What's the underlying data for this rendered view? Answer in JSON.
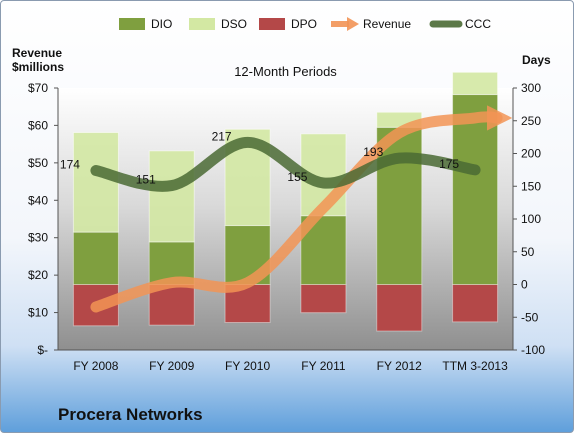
{
  "company": "Procera Networks",
  "chart_data": {
    "type": "bar",
    "title": "12-Month Periods",
    "y_left_label": [
      "Revenue",
      "$millions"
    ],
    "y_right_label": "Days",
    "categories": [
      "FY 2008",
      "FY 2009",
      "FY 2010",
      "FY 2011",
      "FY 2012",
      "TTM 3-2013"
    ],
    "y_left_ticks": [
      "$-",
      "$10",
      "$20",
      "$30",
      "$40",
      "$50",
      "$60",
      "$70"
    ],
    "y_left_range": [
      0,
      70
    ],
    "y_right_ticks": [
      "-100",
      "-50",
      "0",
      "50",
      "100",
      "150",
      "200",
      "250",
      "300"
    ],
    "y_right_range": [
      -100,
      300
    ],
    "legend_position": "top",
    "series": [
      {
        "name": "DIO",
        "kind": "stacked-bar",
        "axis": "right",
        "color": "#7f9f3f",
        "values": [
          80,
          65,
          90,
          105,
          240,
          290
        ]
      },
      {
        "name": "DSO",
        "kind": "stacked-bar",
        "axis": "right",
        "color": "#d3e8a3",
        "values": [
          152,
          139,
          147,
          125,
          23,
          34
        ]
      },
      {
        "name": "DPO",
        "kind": "negative-bar",
        "axis": "right",
        "color": "#b44848",
        "values": [
          -63,
          -62,
          -58,
          -43,
          -71,
          -57
        ]
      },
      {
        "name": "Revenue",
        "kind": "arrow-line",
        "axis": "left",
        "color": "#f29455",
        "values": [
          11.5,
          18,
          18,
          38,
          58,
          62
        ]
      },
      {
        "name": "CCC",
        "kind": "line",
        "axis": "right",
        "color": "#4a6a34",
        "values": [
          174,
          151,
          217,
          155,
          193,
          175
        ]
      }
    ],
    "ccc_labels": [
      "174",
      "151",
      "217",
      "155",
      "193",
      "175"
    ]
  }
}
